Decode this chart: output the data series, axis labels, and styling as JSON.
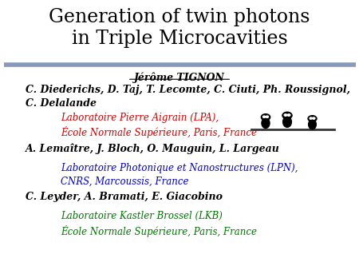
{
  "title_line1": "Generation of twin photons",
  "title_line2": "in Triple Microcavities",
  "title_fontsize": 17,
  "title_color": "#000000",
  "separator_color": "#8899bb",
  "presenter": "Jérôme TIGNON",
  "presenter_fontsize": 9,
  "presenter_color": "#000000",
  "group1_authors": "C. Diederichs, D. Taj, T. Lecomte, C. Ciuti, Ph. Roussignol,\nC. Delalande",
  "group1_authors_fontsize": 9,
  "group1_authors_color": "#000000",
  "group1_lab_line1": "Laboratoire Pierre Aigrain (LPA),",
  "group1_lab_line2": "École Normale Supérieure, Paris, France",
  "group1_lab_color": "#cc0000",
  "group1_lab_fontsize": 8.5,
  "group2_authors": "A. Lemaître, J. Bloch, O. Mauguin, L. Largeau",
  "group2_authors_fontsize": 9,
  "group2_authors_color": "#000000",
  "group2_lab_line1": "Laboratoire Photonique et Nanostructures (LPN),",
  "group2_lab_line2": "CNRS, Marcoussis, France",
  "group2_lab_color": "#0000cc",
  "group2_lab_fontsize": 8.5,
  "group3_authors": "C. Leyder, A. Bramati, E. Giacobino",
  "group3_authors_fontsize": 9,
  "group3_authors_color": "#000000",
  "group3_lab_line1": "Laboratoire Kastler Brossel (LKB)",
  "group3_lab_line2": "École Normale Supérieure, Paris, France",
  "group3_lab_color": "#007700",
  "group3_lab_fontsize": 8.5,
  "bg_color": "#ffffff"
}
